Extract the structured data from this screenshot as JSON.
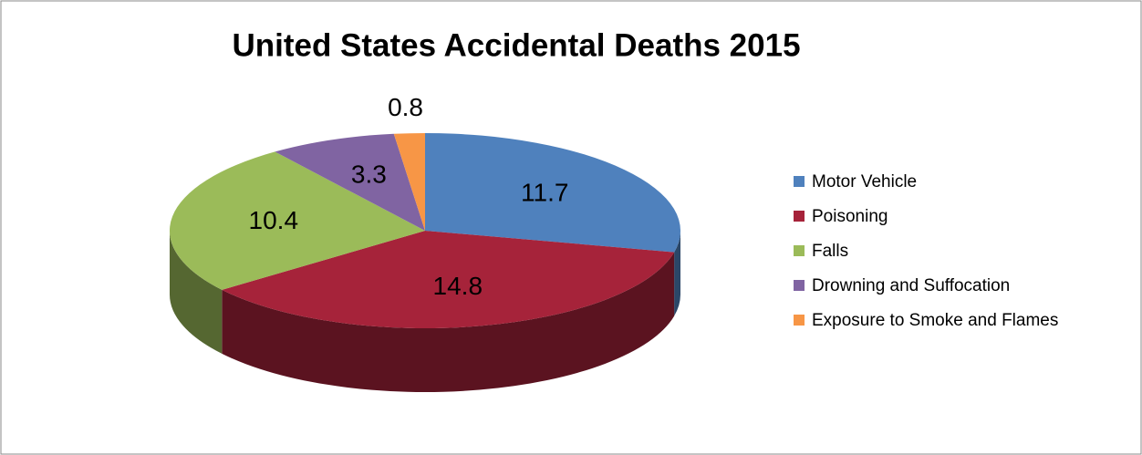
{
  "chart_data": {
    "type": "pie3d",
    "title": "United States Accidental Deaths 2015",
    "categories": [
      "Motor Vehicle",
      "Poisoning",
      "Falls",
      "Drowning and Suffocation",
      "Exposure to Smoke and Flames"
    ],
    "values": [
      11.7,
      14.8,
      10.4,
      3.3,
      0.8
    ],
    "colors": [
      "#4f81bd",
      "#a6233a",
      "#9bbb59",
      "#8064a2",
      "#f79646"
    ],
    "legend": "right"
  }
}
